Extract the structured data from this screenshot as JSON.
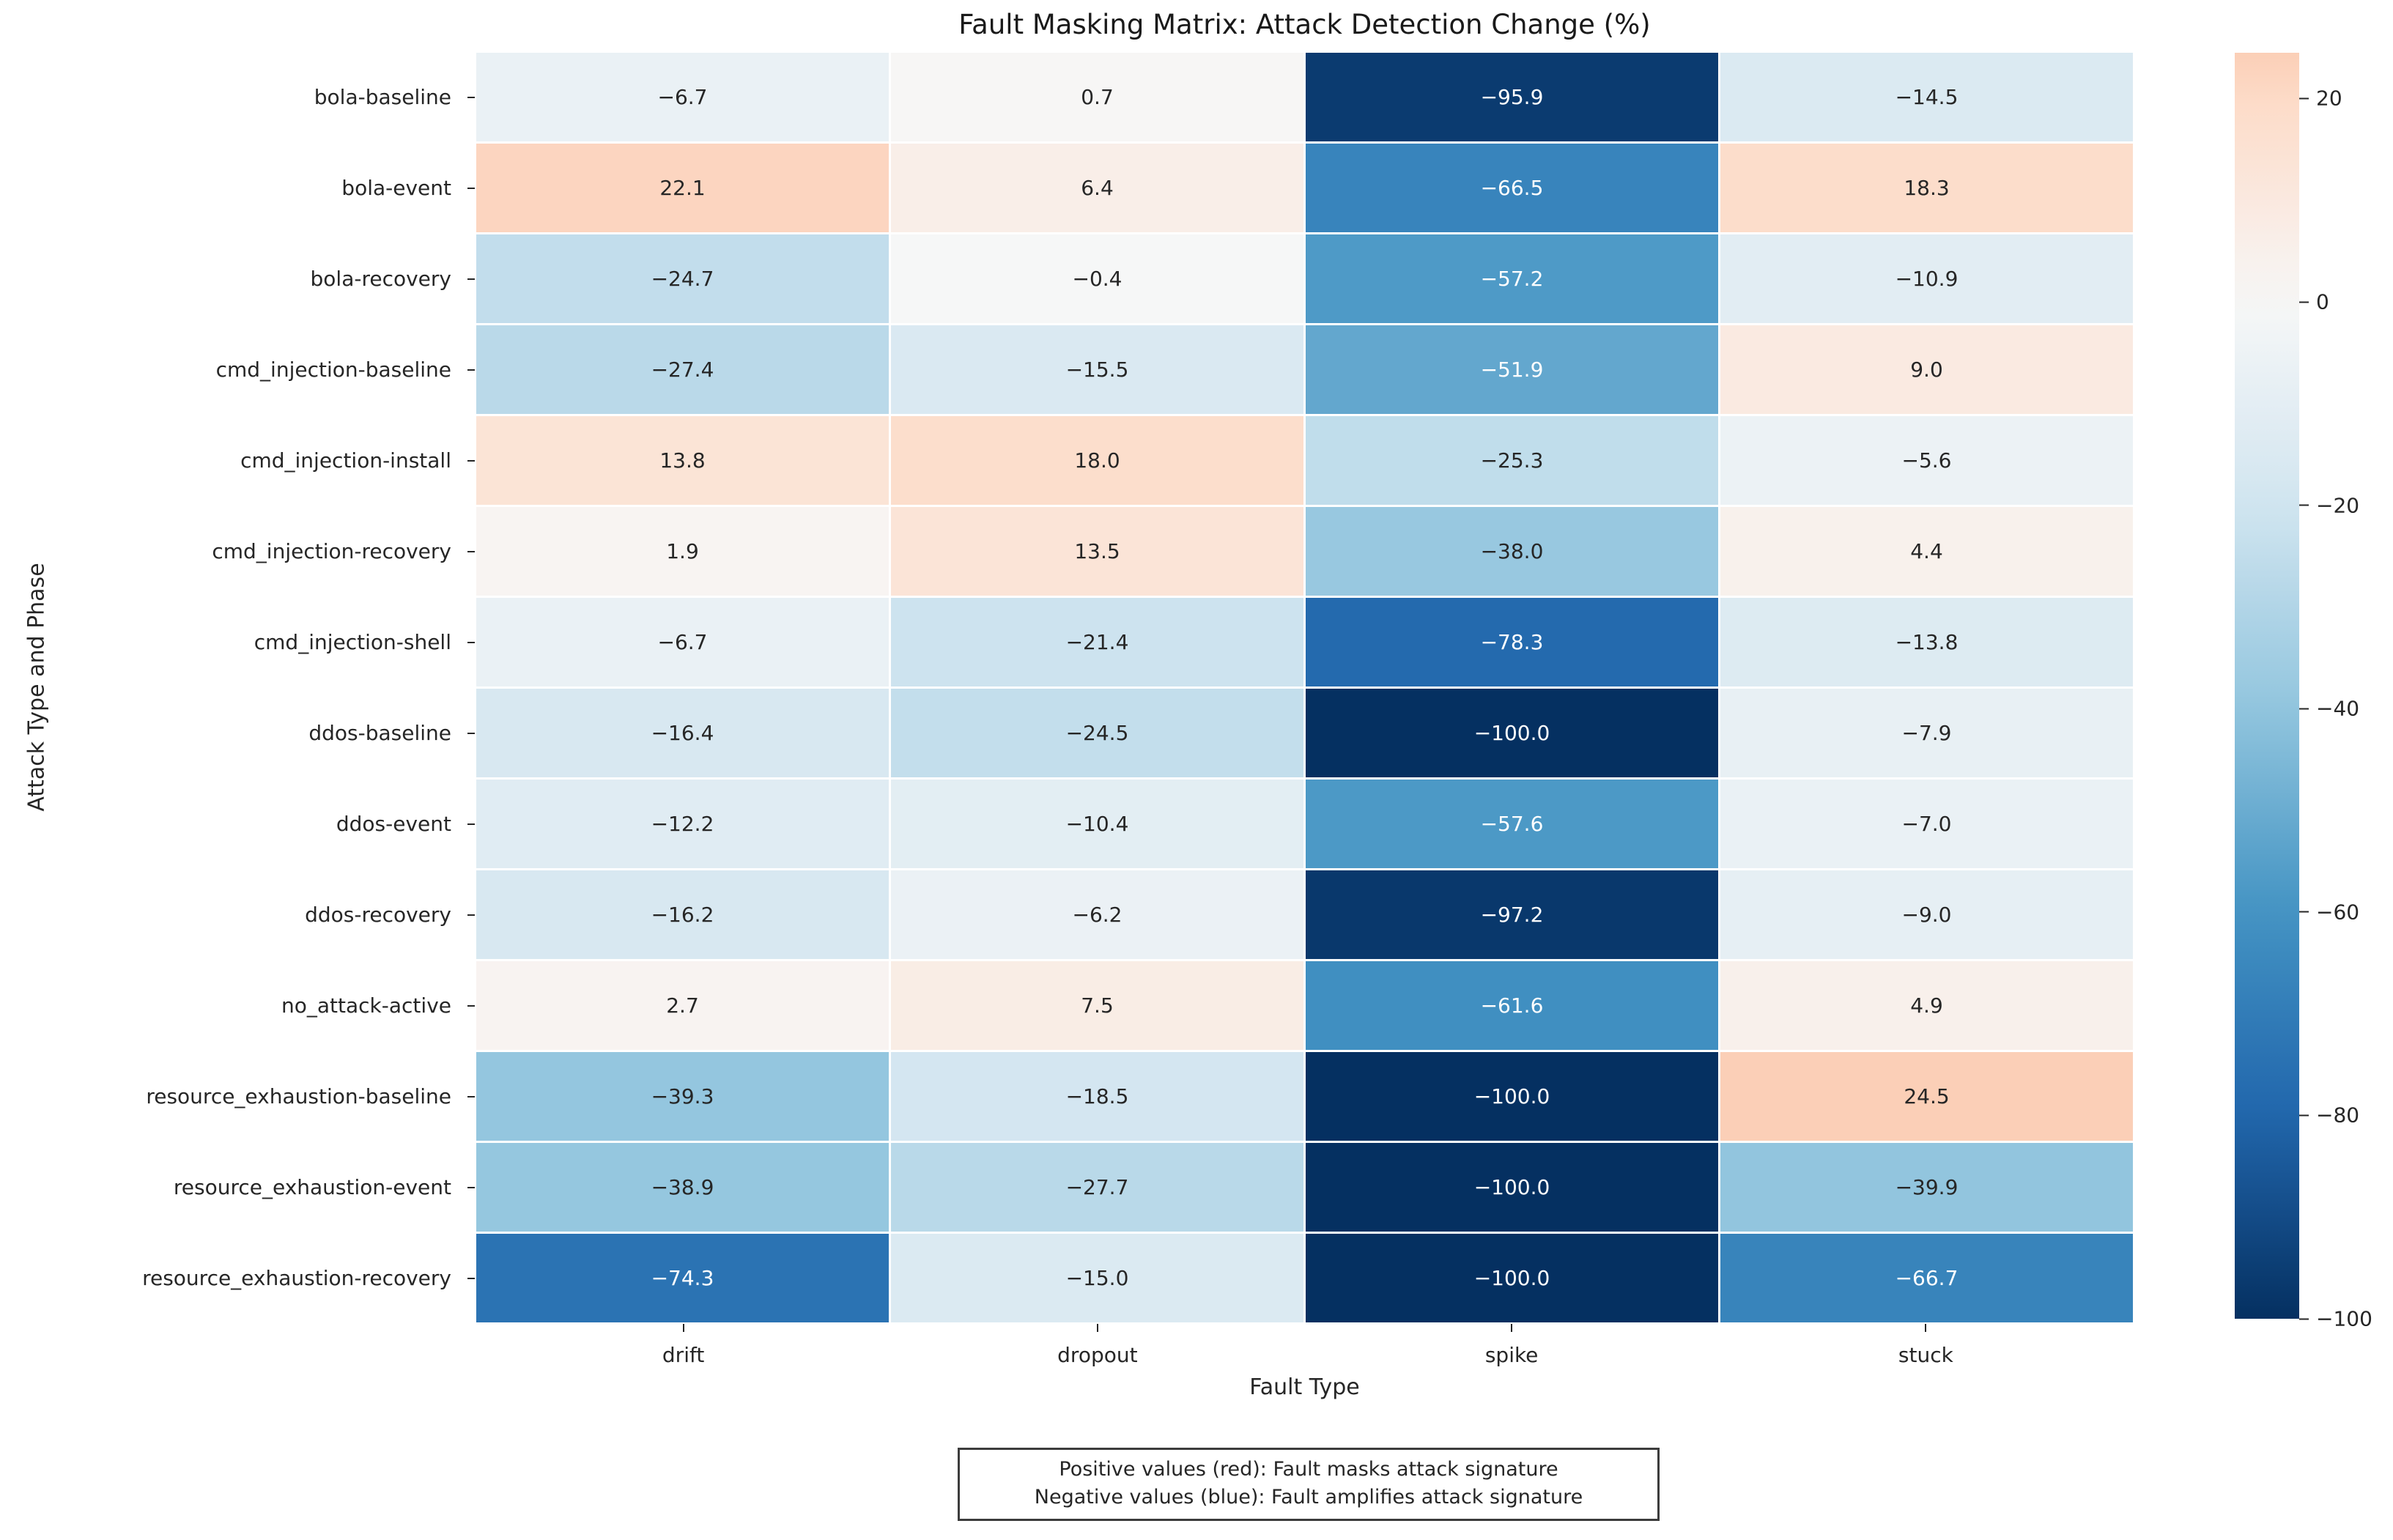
{
  "chart_data": {
    "type": "heatmap",
    "title": "Fault Masking Matrix: Attack Detection Change (%)",
    "xlabel": "Fault Type",
    "ylabel": "Attack Type and Phase",
    "x_categories": [
      "drift",
      "dropout",
      "spike",
      "stuck"
    ],
    "y_categories": [
      "bola-baseline",
      "bola-event",
      "bola-recovery",
      "cmd_injection-baseline",
      "cmd_injection-install",
      "cmd_injection-recovery",
      "cmd_injection-shell",
      "ddos-baseline",
      "ddos-event",
      "ddos-recovery",
      "no_attack-active",
      "resource_exhaustion-baseline",
      "resource_exhaustion-event",
      "resource_exhaustion-recovery"
    ],
    "values": [
      [
        -6.7,
        0.7,
        -95.9,
        -14.5
      ],
      [
        22.1,
        6.4,
        -66.5,
        18.3
      ],
      [
        -24.7,
        -0.4,
        -57.2,
        -10.9
      ],
      [
        -27.4,
        -15.5,
        -51.9,
        9.0
      ],
      [
        13.8,
        18.0,
        -25.3,
        -5.6
      ],
      [
        1.9,
        13.5,
        -38.0,
        4.4
      ],
      [
        -6.7,
        -21.4,
        -78.3,
        -13.8
      ],
      [
        -16.4,
        -24.5,
        -100.0,
        -7.9
      ],
      [
        -12.2,
        -10.4,
        -57.6,
        -7.0
      ],
      [
        -16.2,
        -6.2,
        -97.2,
        -9.0
      ],
      [
        2.7,
        7.5,
        -61.6,
        4.9
      ],
      [
        -39.3,
        -18.5,
        -100.0,
        24.5
      ],
      [
        -38.9,
        -27.7,
        -100.0,
        -39.9
      ],
      [
        -74.3,
        -15.0,
        -100.0,
        -66.7
      ]
    ],
    "vmin": -100.0,
    "vmax": 24.5,
    "center": 0,
    "colorbar_ticks": [
      20,
      0,
      -20,
      -40,
      -60,
      -80,
      -100
    ],
    "annotation_decimals": 1,
    "colormap": {
      "name": "RdBu_r",
      "anchors": [
        "#053061",
        "#2166ac",
        "#4393c3",
        "#92c5de",
        "#d1e5f0",
        "#f7f7f7",
        "#fddbc7",
        "#f4a582",
        "#d6604d",
        "#b2182b",
        "#67001f"
      ],
      "annot_dark": "#262626",
      "annot_light": "#ffffff"
    },
    "note_lines": [
      "Positive values (red): Fault masks attack signature",
      "Negative values (blue): Fault amplifies attack signature"
    ],
    "legend_position": "right-colorbar",
    "grid": false
  }
}
